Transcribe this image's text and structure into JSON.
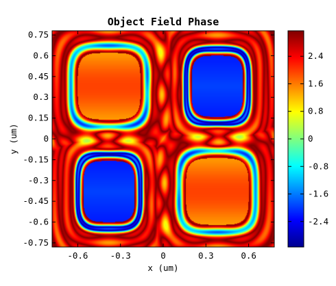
{
  "chart_data": {
    "type": "heatmap",
    "title": "Object Field Phase",
    "xlabel": "x (um)",
    "ylabel": "y (um)",
    "xlim": [
      -0.78,
      0.78
    ],
    "ylim": [
      -0.78,
      0.78
    ],
    "x_ticks": [
      -0.6,
      -0.3,
      0,
      0.3,
      0.6
    ],
    "x_tick_labels": [
      "-0.6",
      "-0.3",
      "0",
      "0.3",
      "0.6"
    ],
    "y_ticks": [
      0.75,
      0.6,
      0.45,
      0.3,
      0.15,
      0,
      -0.15,
      -0.3,
      -0.45,
      -0.6,
      -0.75
    ],
    "y_tick_labels": [
      "0.75",
      "0.6",
      "0.45",
      "0.3",
      "0.15",
      "0",
      "-0.15",
      "-0.3",
      "-0.45",
      "-0.6",
      "-0.75"
    ],
    "colorbar": {
      "colormap": "jet",
      "range": [
        -3.14,
        3.14
      ],
      "ticks": [
        2.4,
        1.6,
        0.8,
        0,
        -0.8,
        -1.6,
        -2.4
      ],
      "tick_labels": [
        "2.4",
        "1.6",
        "0.8",
        "0",
        "-0.8",
        "-1.6",
        "-2.4"
      ]
    },
    "regions": [
      {
        "center": [
          -0.38,
          0.38
        ],
        "half_size": [
          0.22,
          0.24
        ],
        "phase": 1.8
      },
      {
        "center": [
          0.38,
          0.38
        ],
        "half_size": [
          0.18,
          0.22
        ],
        "phase": -2.2
      },
      {
        "center": [
          -0.38,
          -0.38
        ],
        "half_size": [
          0.18,
          0.22
        ],
        "phase": -2.2
      },
      {
        "center": [
          0.38,
          -0.38
        ],
        "half_size": [
          0.22,
          0.24
        ],
        "phase": 1.8
      }
    ]
  }
}
